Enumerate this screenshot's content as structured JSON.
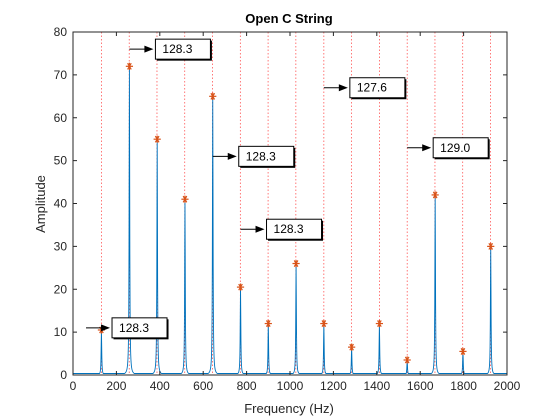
{
  "colors": {
    "spectrum": "#0072bd",
    "peak_marker": "#d95319",
    "harmonic_line": "#ff0000",
    "axis": "#262626",
    "annotation_arrow": "#000000"
  },
  "chart_data": {
    "type": "line",
    "title": "Open C String",
    "xlabel": "Frequency (Hz)",
    "ylabel": "Amplitude",
    "xlim": [
      0,
      2000
    ],
    "ylim": [
      0,
      80
    ],
    "xticks": [
      0,
      200,
      400,
      600,
      800,
      1000,
      1200,
      1400,
      1600,
      1800,
      2000
    ],
    "yticks": [
      0,
      10,
      20,
      30,
      40,
      50,
      60,
      70,
      80
    ],
    "grid": false,
    "series": [
      {
        "style": "spectrum-line",
        "peaks": [
          {
            "x": 131,
            "y": 10.5
          },
          {
            "x": 260,
            "y": 72
          },
          {
            "x": 388,
            "y": 55
          },
          {
            "x": 516,
            "y": 41
          },
          {
            "x": 644,
            "y": 65
          },
          {
            "x": 772,
            "y": 20.5
          },
          {
            "x": 900,
            "y": 12
          },
          {
            "x": 1028,
            "y": 26
          },
          {
            "x": 1156,
            "y": 12
          },
          {
            "x": 1284,
            "y": 6.5
          },
          {
            "x": 1412,
            "y": 12
          },
          {
            "x": 1540,
            "y": 3.5
          },
          {
            "x": 1669,
            "y": 42
          },
          {
            "x": 1797,
            "y": 5.5
          },
          {
            "x": 1925,
            "y": 30
          }
        ]
      }
    ],
    "harmonic_lines_x": [
      131,
      259,
      387,
      515,
      643,
      771,
      899,
      1027,
      1156,
      1284,
      1412,
      1540,
      1668,
      1796,
      1924
    ],
    "annotations": [
      {
        "text": "128.3",
        "arrow_from": [
          60,
          11
        ],
        "arrow_to": [
          130,
          11
        ]
      },
      {
        "text": "128.3",
        "arrow_from": [
          260,
          76
        ],
        "arrow_to": [
          384,
          76
        ]
      },
      {
        "text": "128.3",
        "arrow_from": [
          644,
          51
        ],
        "arrow_to": [
          772,
          51
        ]
      },
      {
        "text": "128.3",
        "arrow_from": [
          772,
          34
        ],
        "arrow_to": [
          898,
          34
        ]
      },
      {
        "text": "127.6",
        "arrow_from": [
          1156,
          67
        ],
        "arrow_to": [
          1284,
          67
        ]
      },
      {
        "text": "129.0",
        "arrow_from": [
          1540,
          53
        ],
        "arrow_to": [
          1670,
          53
        ]
      }
    ]
  }
}
